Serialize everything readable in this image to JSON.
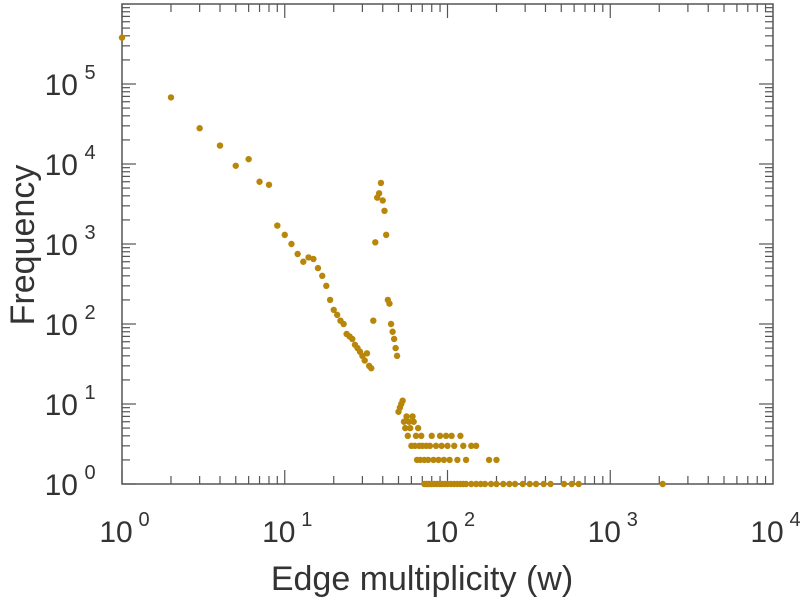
{
  "chart_data": {
    "type": "scatter",
    "title": "",
    "xlabel": "Edge multiplicity (w)",
    "ylabel": "Frequency",
    "xscale": "log",
    "yscale": "log",
    "xlim": [
      1,
      10000
    ],
    "ylim": [
      1,
      1000000
    ],
    "x_tick_labels": [
      {
        "base": "10",
        "exp": "0"
      },
      {
        "base": "10",
        "exp": "1"
      },
      {
        "base": "10",
        "exp": "2"
      },
      {
        "base": "10",
        "exp": "3"
      },
      {
        "base": "10",
        "exp": "4"
      }
    ],
    "y_tick_labels": [
      {
        "base": "10",
        "exp": "0"
      },
      {
        "base": "10",
        "exp": "1"
      },
      {
        "base": "10",
        "exp": "2"
      },
      {
        "base": "10",
        "exp": "3"
      },
      {
        "base": "10",
        "exp": "4"
      },
      {
        "base": "10",
        "exp": "5"
      }
    ],
    "marker_color": "#b8860b",
    "grid": false,
    "legend": "none",
    "series": [
      {
        "name": "frequency",
        "points": [
          [
            1,
            380000
          ],
          [
            2,
            68000
          ],
          [
            3,
            28000
          ],
          [
            4,
            17000
          ],
          [
            5,
            9500
          ],
          [
            6,
            11500
          ],
          [
            7,
            6000
          ],
          [
            8,
            5500
          ],
          [
            9,
            1700
          ],
          [
            10,
            1300
          ],
          [
            11,
            1000
          ],
          [
            12,
            750
          ],
          [
            13,
            600
          ],
          [
            14,
            680
          ],
          [
            15,
            650
          ],
          [
            16,
            500
          ],
          [
            17,
            400
          ],
          [
            18,
            300
          ],
          [
            19,
            200
          ],
          [
            20,
            150
          ],
          [
            21,
            130
          ],
          [
            22,
            110
          ],
          [
            23,
            100
          ],
          [
            24,
            75
          ],
          [
            25,
            70
          ],
          [
            26,
            65
          ],
          [
            27,
            55
          ],
          [
            28,
            50
          ],
          [
            29,
            45
          ],
          [
            30,
            40
          ],
          [
            31,
            35
          ],
          [
            32,
            43
          ],
          [
            33,
            30
          ],
          [
            34,
            28
          ],
          [
            35,
            110
          ],
          [
            36,
            1050
          ],
          [
            37,
            3800
          ],
          [
            38,
            4300
          ],
          [
            39,
            5800
          ],
          [
            40,
            3500
          ],
          [
            41,
            2600
          ],
          [
            42,
            1300
          ],
          [
            43,
            200
          ],
          [
            44,
            180
          ],
          [
            45,
            100
          ],
          [
            46,
            80
          ],
          [
            47,
            65
          ],
          [
            48,
            50
          ],
          [
            49,
            40
          ],
          [
            50,
            8
          ],
          [
            51,
            9
          ],
          [
            52,
            10
          ],
          [
            53,
            11
          ],
          [
            54,
            6
          ],
          [
            55,
            5
          ],
          [
            56,
            7
          ],
          [
            57,
            4
          ],
          [
            58,
            6
          ],
          [
            59,
            5
          ],
          [
            60,
            3
          ],
          [
            61,
            7
          ],
          [
            62,
            6
          ],
          [
            63,
            3
          ],
          [
            64,
            4
          ],
          [
            65,
            2
          ],
          [
            66,
            5
          ],
          [
            67,
            3
          ],
          [
            68,
            2
          ],
          [
            69,
            4
          ],
          [
            70,
            3
          ],
          [
            72,
            2
          ],
          [
            74,
            3
          ],
          [
            76,
            2
          ],
          [
            78,
            3
          ],
          [
            80,
            4
          ],
          [
            82,
            2
          ],
          [
            85,
            3
          ],
          [
            88,
            2
          ],
          [
            90,
            4
          ],
          [
            92,
            3
          ],
          [
            95,
            2
          ],
          [
            98,
            4
          ],
          [
            100,
            3
          ],
          [
            103,
            2
          ],
          [
            106,
            4
          ],
          [
            110,
            3
          ],
          [
            115,
            2
          ],
          [
            120,
            4
          ],
          [
            125,
            3
          ],
          [
            130,
            2
          ],
          [
            140,
            3
          ],
          [
            150,
            3
          ],
          [
            180,
            2
          ],
          [
            200,
            2
          ],
          [
            72,
            1
          ],
          [
            74,
            1
          ],
          [
            76,
            1
          ],
          [
            78,
            1
          ],
          [
            80,
            1
          ],
          [
            83,
            1
          ],
          [
            86,
            1
          ],
          [
            89,
            1
          ],
          [
            92,
            1
          ],
          [
            96,
            1
          ],
          [
            100,
            1
          ],
          [
            105,
            1
          ],
          [
            110,
            1
          ],
          [
            115,
            1
          ],
          [
            120,
            1
          ],
          [
            125,
            1
          ],
          [
            130,
            1
          ],
          [
            140,
            1
          ],
          [
            150,
            1
          ],
          [
            160,
            1
          ],
          [
            170,
            1
          ],
          [
            185,
            1
          ],
          [
            200,
            1
          ],
          [
            220,
            1
          ],
          [
            240,
            1
          ],
          [
            260,
            1
          ],
          [
            290,
            1
          ],
          [
            320,
            1
          ],
          [
            350,
            1
          ],
          [
            390,
            1
          ],
          [
            430,
            1
          ],
          [
            520,
            1
          ],
          [
            580,
            1
          ],
          [
            640,
            1
          ],
          [
            2100,
            1
          ]
        ]
      }
    ]
  }
}
